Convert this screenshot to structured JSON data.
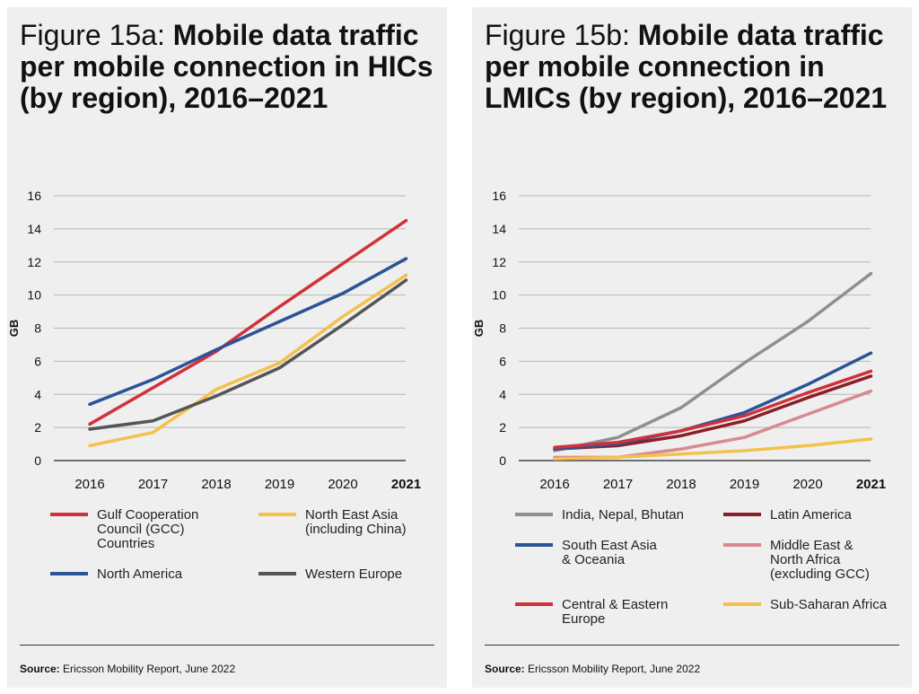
{
  "chart_data": [
    {
      "type": "line",
      "figure_label": "Figure 15a:",
      "title": "Mobile data traffic per mobile connection in HICs (by region), 2016–2021",
      "ylabel": "GB",
      "xlabel": "",
      "x": [
        "2016",
        "2017",
        "2018",
        "2019",
        "2020",
        "2021"
      ],
      "bold_x": "2021",
      "ylim": [
        0,
        16
      ],
      "yticks": [
        0,
        2,
        4,
        6,
        8,
        10,
        12,
        14,
        16
      ],
      "grid": true,
      "series": [
        {
          "name": "Gulf Cooperation Council (GCC) Countries",
          "legend_lines": [
            "Gulf Cooperation",
            "Council (GCC)",
            "Countries"
          ],
          "color": "#d0313a",
          "values": [
            2.2,
            4.4,
            6.6,
            9.3,
            11.9,
            14.5
          ]
        },
        {
          "name": "North East Asia (including China)",
          "legend_lines": [
            "North East Asia",
            "(including China)"
          ],
          "color": "#f4c14b",
          "values": [
            0.9,
            1.7,
            4.3,
            5.9,
            8.7,
            11.2
          ]
        },
        {
          "name": "North America",
          "legend_lines": [
            "North America"
          ],
          "color": "#2b5496",
          "values": [
            3.4,
            4.9,
            6.7,
            8.4,
            10.1,
            12.2
          ]
        },
        {
          "name": "Western Europe",
          "legend_lines": [
            "Western Europe"
          ],
          "color": "#555555",
          "values": [
            1.9,
            2.4,
            3.9,
            5.6,
            8.2,
            10.9
          ]
        }
      ],
      "source_label": "Source:",
      "source_text": "Ericsson Mobility Report, June 2022"
    },
    {
      "type": "line",
      "figure_label": "Figure 15b:",
      "title": "Mobile data traffic per mobile connection in LMICs (by region), 2016–2021",
      "ylabel": "GB",
      "xlabel": "",
      "x": [
        "2016",
        "2017",
        "2018",
        "2019",
        "2020",
        "2021"
      ],
      "bold_x": "2021",
      "ylim": [
        0,
        16
      ],
      "yticks": [
        0,
        2,
        4,
        6,
        8,
        10,
        12,
        14,
        16
      ],
      "grid": true,
      "series": [
        {
          "name": "India, Nepal, Bhutan",
          "legend_lines": [
            "India, Nepal, Bhutan"
          ],
          "color": "#8f8f8f",
          "values": [
            0.6,
            1.4,
            3.2,
            5.9,
            8.4,
            11.3
          ]
        },
        {
          "name": "Latin America",
          "legend_lines": [
            "Latin America"
          ],
          "color": "#8a1f2a",
          "values": [
            0.7,
            0.9,
            1.5,
            2.4,
            3.8,
            5.1
          ]
        },
        {
          "name": "South East Asia & Oceania",
          "legend_lines": [
            "South East Asia",
            "& Oceania"
          ],
          "color": "#2b5496",
          "values": [
            0.7,
            1.0,
            1.8,
            2.9,
            4.6,
            6.5
          ]
        },
        {
          "name": "Middle East & North Africa (excluding GCC)",
          "legend_lines": [
            "Middle East &",
            "North Africa",
            "(excluding GCC)"
          ],
          "color": "#d88a92",
          "values": [
            0.2,
            0.2,
            0.7,
            1.4,
            2.8,
            4.2
          ]
        },
        {
          "name": "Central & Eastern Europe",
          "legend_lines": [
            "Central & Eastern",
            "Europe"
          ],
          "color": "#d0313a",
          "values": [
            0.8,
            1.1,
            1.8,
            2.7,
            4.1,
            5.4
          ]
        },
        {
          "name": "Sub-Saharan Africa",
          "legend_lines": [
            "Sub-Saharan Africa"
          ],
          "color": "#f4c14b",
          "values": [
            0.1,
            0.2,
            0.4,
            0.6,
            0.9,
            1.3
          ]
        }
      ],
      "source_label": "Source:",
      "source_text": "Ericsson Mobility Report, June 2022"
    }
  ]
}
